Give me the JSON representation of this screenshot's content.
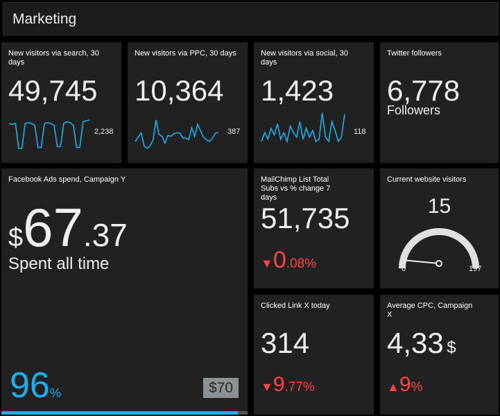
{
  "header": {
    "title": "Marketing"
  },
  "tiles": {
    "search": {
      "title": "New visitors via search, 30 days",
      "value": "49,745",
      "last": "2,238",
      "series": [
        12,
        13,
        12,
        40,
        40,
        12,
        11,
        12,
        14,
        39,
        39,
        12,
        11,
        12,
        14,
        38,
        38,
        12,
        10,
        11,
        14,
        39,
        39,
        10,
        9,
        8
      ]
    },
    "ppc": {
      "title": "New visitors via PPC, 30 days",
      "value": "10,364",
      "last": "387",
      "series": [
        30,
        25,
        20,
        35,
        38,
        35,
        28,
        5,
        22,
        24,
        32,
        23,
        24,
        21,
        20,
        20,
        26,
        26,
        28,
        14,
        24,
        10,
        18,
        25,
        28,
        30,
        26,
        20,
        20
      ]
    },
    "social": {
      "title": "New visitors via social, 30 days",
      "value": "1,423",
      "last": "118",
      "series": [
        30,
        22,
        28,
        18,
        24,
        14,
        28,
        22,
        30,
        16,
        22,
        26,
        12,
        28,
        18,
        26,
        20,
        30,
        28,
        4,
        26,
        30,
        12,
        20,
        30,
        26,
        5
      ]
    },
    "twitter": {
      "title": "Twitter followers",
      "value": "6,778",
      "label": "Followers"
    },
    "facebook": {
      "title": "Facebook Ads spend, Campaign Y",
      "currency": "$",
      "value_int": "67",
      "value_dec": ".37",
      "label": "Spent all time",
      "percent": "96",
      "percent_sign": "%",
      "target": "$70",
      "progress": 0.96
    },
    "mailchimp": {
      "title": "MailChimp List Total Subs vs % change 7 days",
      "value": "51,735",
      "change_int": "0",
      "change_dec": ".08%"
    },
    "current": {
      "title": "Current website visitors",
      "value": "15",
      "min": "0",
      "max": "197",
      "gauge_value": 15,
      "gauge_max": 197
    },
    "clicked": {
      "title": "Clicked Link X today",
      "value": "314",
      "change_int": "9",
      "change_dec": ".77%"
    },
    "cpc": {
      "title": "Average CPC, Campaign X",
      "value": "4,33",
      "unit": "$",
      "change_int": "9",
      "change_dec": "%"
    }
  },
  "colors": {
    "accent": "#1ab0f0",
    "negative": "#f44444",
    "tile": "#212121"
  }
}
